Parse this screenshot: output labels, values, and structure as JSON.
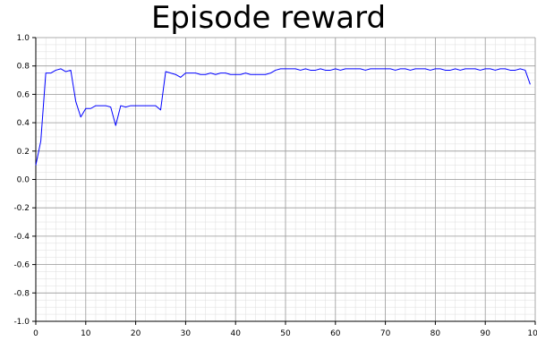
{
  "chart_data": {
    "type": "line",
    "title": "Episode reward",
    "xlabel": "",
    "ylabel": "",
    "xlim": [
      0,
      100
    ],
    "ylim": [
      -1.0,
      1.0
    ],
    "x_ticks": [
      "0",
      "10",
      "20",
      "30",
      "40",
      "50",
      "60",
      "70",
      "80",
      "90",
      "100"
    ],
    "y_ticks": [
      "1.0",
      "0.8",
      "0.6",
      "0.4",
      "0.2",
      "0.0",
      "-0.2",
      "-0.4",
      "-0.6",
      "-0.8",
      "-1.0"
    ],
    "grid": true,
    "minor_grid": true,
    "series": [
      {
        "color": "#0000ff",
        "x": [
          0,
          1,
          2,
          3,
          4,
          5,
          6,
          7,
          8,
          9,
          10,
          11,
          12,
          13,
          14,
          15,
          16,
          17,
          18,
          19,
          20,
          21,
          22,
          23,
          24,
          25,
          26,
          27,
          28,
          29,
          30,
          31,
          32,
          33,
          34,
          35,
          36,
          37,
          38,
          39,
          40,
          41,
          42,
          43,
          44,
          45,
          46,
          47,
          48,
          49,
          50,
          51,
          52,
          53,
          54,
          55,
          56,
          57,
          58,
          59,
          60,
          61,
          62,
          63,
          64,
          65,
          66,
          67,
          68,
          69,
          70,
          71,
          72,
          73,
          74,
          75,
          76,
          77,
          78,
          79,
          80,
          81,
          82,
          83,
          84,
          85,
          86,
          87,
          88,
          89,
          90,
          91,
          92,
          93,
          94,
          95,
          96,
          97,
          98,
          99
        ],
        "values": [
          0.1,
          0.27,
          0.75,
          0.75,
          0.77,
          0.78,
          0.76,
          0.77,
          0.55,
          0.44,
          0.5,
          0.5,
          0.52,
          0.52,
          0.52,
          0.51,
          0.38,
          0.52,
          0.51,
          0.52,
          0.52,
          0.52,
          0.52,
          0.52,
          0.52,
          0.49,
          0.76,
          0.75,
          0.74,
          0.72,
          0.75,
          0.75,
          0.75,
          0.74,
          0.74,
          0.75,
          0.74,
          0.75,
          0.75,
          0.74,
          0.74,
          0.74,
          0.75,
          0.74,
          0.74,
          0.74,
          0.74,
          0.75,
          0.77,
          0.78,
          0.78,
          0.78,
          0.78,
          0.77,
          0.78,
          0.77,
          0.77,
          0.78,
          0.77,
          0.77,
          0.78,
          0.77,
          0.78,
          0.78,
          0.78,
          0.78,
          0.77,
          0.78,
          0.78,
          0.78,
          0.78,
          0.78,
          0.77,
          0.78,
          0.78,
          0.77,
          0.78,
          0.78,
          0.78,
          0.77,
          0.78,
          0.78,
          0.77,
          0.77,
          0.78,
          0.77,
          0.78,
          0.78,
          0.78,
          0.77,
          0.78,
          0.78,
          0.77,
          0.78,
          0.78,
          0.77,
          0.77,
          0.78,
          0.77,
          0.67
        ]
      }
    ]
  }
}
